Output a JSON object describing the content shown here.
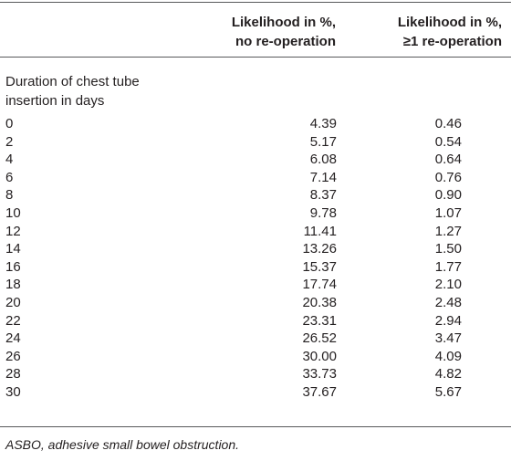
{
  "table": {
    "header": {
      "col1": [
        "Likelihood in %,",
        "no re-operation"
      ],
      "col2": [
        "Likelihood in %,",
        "≥1 re-operation"
      ]
    },
    "row_group_label": [
      "Duration of chest tube",
      "insertion in days"
    ],
    "rows": [
      {
        "days": "0",
        "no_reop": "4.39",
        "reop": "0.46"
      },
      {
        "days": "2",
        "no_reop": "5.17",
        "reop": "0.54"
      },
      {
        "days": "4",
        "no_reop": "6.08",
        "reop": "0.64"
      },
      {
        "days": "6",
        "no_reop": "7.14",
        "reop": "0.76"
      },
      {
        "days": "8",
        "no_reop": "8.37",
        "reop": "0.90"
      },
      {
        "days": "10",
        "no_reop": "9.78",
        "reop": "1.07"
      },
      {
        "days": "12",
        "no_reop": "11.41",
        "reop": "1.27"
      },
      {
        "days": "14",
        "no_reop": "13.26",
        "reop": "1.50"
      },
      {
        "days": "16",
        "no_reop": "15.37",
        "reop": "1.77"
      },
      {
        "days": "18",
        "no_reop": "17.74",
        "reop": "2.10"
      },
      {
        "days": "20",
        "no_reop": "20.38",
        "reop": "2.48"
      },
      {
        "days": "22",
        "no_reop": "23.31",
        "reop": "2.94"
      },
      {
        "days": "24",
        "no_reop": "26.52",
        "reop": "3.47"
      },
      {
        "days": "26",
        "no_reop": "30.00",
        "reop": "4.09"
      },
      {
        "days": "28",
        "no_reop": "33.73",
        "reop": "4.82"
      },
      {
        "days": "30",
        "no_reop": "37.67",
        "reop": "5.67"
      }
    ],
    "footnote": "ASBO, adhesive small bowel obstruction."
  }
}
